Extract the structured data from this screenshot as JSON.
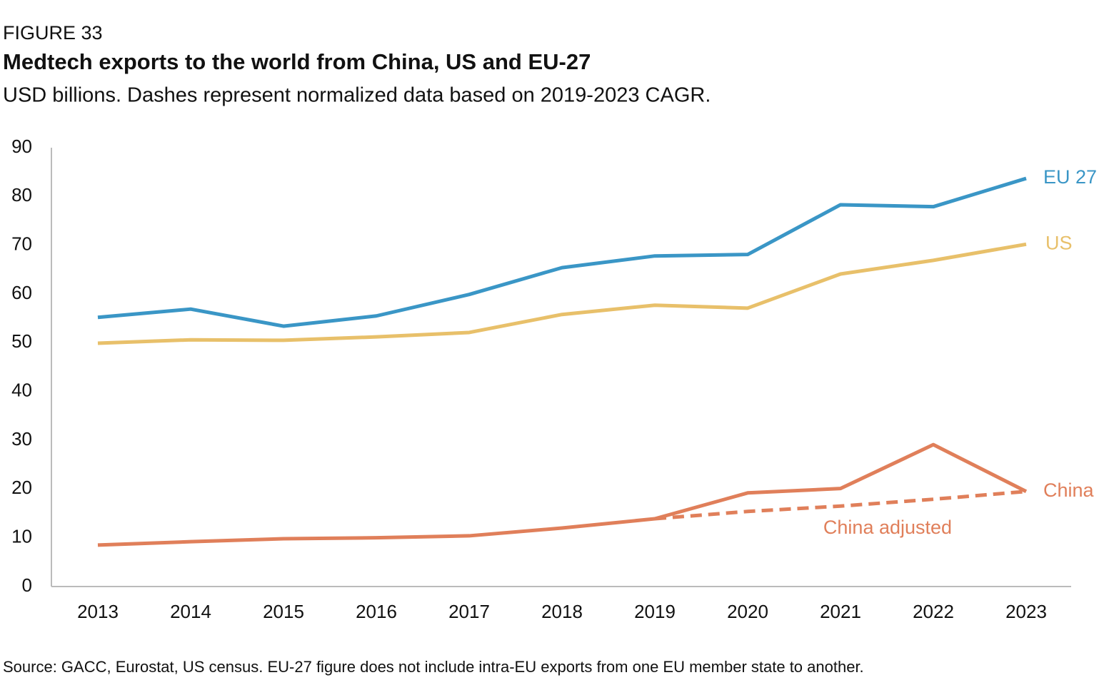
{
  "chart_data": {
    "type": "line",
    "label": "FIGURE 33",
    "title": "Medtech exports to the world from China, US and EU-27",
    "subtitle": "USD billions. Dashes represent normalized data based on 2019-2023 CAGR.",
    "source": "Source: GACC, Eurostat, US census. EU-27 figure does not include intra-EU exports from one EU member state to another.",
    "categories": [
      "2013",
      "2014",
      "2015",
      "2016",
      "2017",
      "2018",
      "2019",
      "2020",
      "2021",
      "2022",
      "2023"
    ],
    "series": [
      {
        "name": "EU 27",
        "color": "#3a96c6",
        "values": [
          55.2,
          56.9,
          53.4,
          55.5,
          59.9,
          65.4,
          67.8,
          68.1,
          78.3,
          77.9,
          83.7
        ]
      },
      {
        "name": "US",
        "color": "#e8c06a",
        "values": [
          49.9,
          50.6,
          50.5,
          51.2,
          52.1,
          55.8,
          57.7,
          57.1,
          64.1,
          66.9,
          70.2
        ]
      },
      {
        "name": "China",
        "color": "#e07f5a",
        "values": [
          8.5,
          9.2,
          9.8,
          10.0,
          10.4,
          12.0,
          13.9,
          19.2,
          20.1,
          29.1,
          19.5
        ]
      },
      {
        "name": "China adjusted",
        "color": "#e07f5a",
        "dashed": true,
        "values": [
          null,
          null,
          null,
          null,
          null,
          null,
          13.9,
          15.4,
          16.5,
          17.9,
          19.5
        ]
      }
    ],
    "ylim": [
      0,
      90
    ],
    "yticks": [
      0,
      10,
      20,
      30,
      40,
      50,
      60,
      70,
      80,
      90
    ],
    "grid": false
  }
}
